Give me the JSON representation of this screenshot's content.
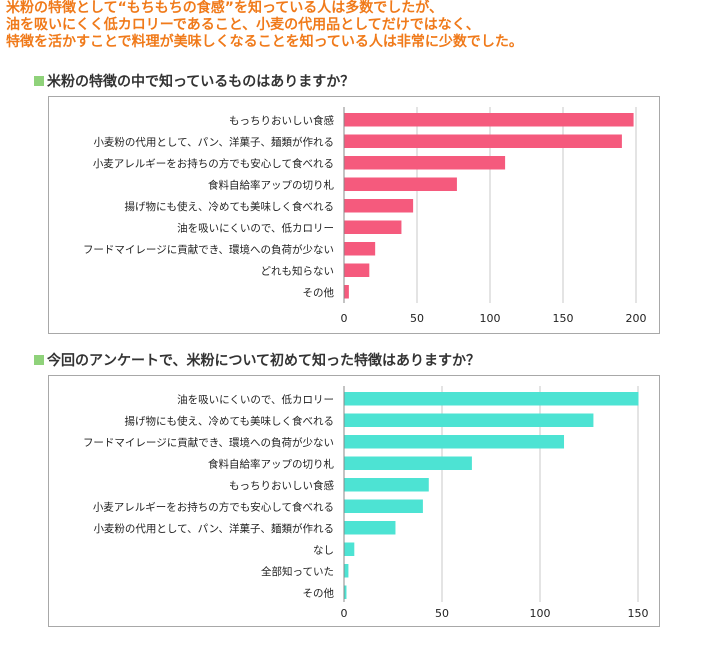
{
  "headline": {
    "lines": [
      "米粉の特徴として“もちもちの食感”を知っている人は多数でしたが、",
      "油を吸いにくく低カロリーであること、小麦の代用品としてだけではなく、",
      "特徴を活かすことで料理が美味しくなることを知っている人は非常に少数でした。"
    ]
  },
  "sections": [
    {
      "heading": "米粉の特徴の中で知っているものはありますか？"
    },
    {
      "heading": "今回のアンケートで、米粉について初めて知った特徴はありますか？"
    }
  ],
  "chart_data": [
    {
      "type": "bar",
      "orientation": "horizontal",
      "color": "#f55a7d",
      "categories": [
        "もっちりおいしい食感",
        "小麦粉の代用として、パン、洋菓子、麺類が作れる",
        "小麦アレルギーをお持ちの方でも安心して食べれる",
        "食料自給率アップの切り札",
        "揚げ物にも使え、冷めても美味しく食べれる",
        "油を吸いにくいので、低カロリー",
        "フードマイレージに貢献でき、環境への負荷が少ない",
        "どれも知らない",
        "その他"
      ],
      "values": [
        198,
        190,
        110,
        77,
        47,
        39,
        21,
        17,
        3
      ],
      "xlim": [
        0,
        200
      ],
      "xticks": [
        "0",
        "50",
        "100",
        "150",
        "200"
      ],
      "grid": true
    },
    {
      "type": "bar",
      "orientation": "horizontal",
      "color": "#4de3d3",
      "categories": [
        "油を吸いにくいので、低カロリー",
        "揚げ物にも使え、冷めても美味しく食べれる",
        "フードマイレージに貢献でき、環境への負荷が少ない",
        "食料自給率アップの切り札",
        "もっちりおいしい食感",
        "小麦アレルギーをお持ちの方でも安心して食べれる",
        "小麦粉の代用として、パン、洋菓子、麺類が作れる",
        "なし",
        "全部知っていた",
        "その他"
      ],
      "values": [
        150,
        127,
        112,
        65,
        43,
        40,
        26,
        5,
        2,
        1
      ],
      "xlim": [
        0,
        150
      ],
      "xticks": [
        "0",
        "50",
        "100",
        "150"
      ],
      "grid": true
    }
  ]
}
